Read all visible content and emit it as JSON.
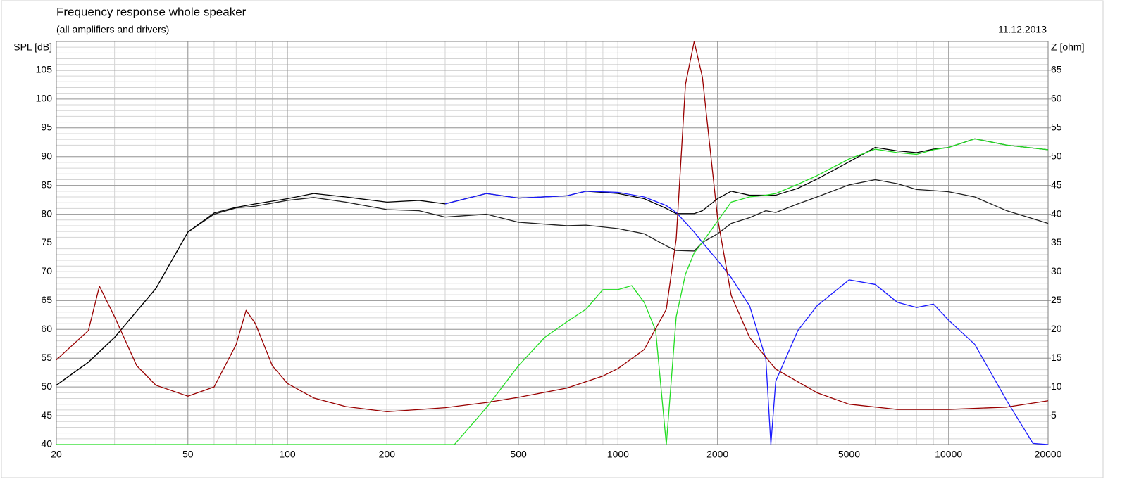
{
  "chart_data": {
    "type": "line",
    "title": "Frequency response whole speaker",
    "subtitle": "(all amplifiers and drivers)",
    "date": "11.12.2013",
    "ylabel": "SPL [dB]",
    "y2label": "Z [ohm]",
    "xscale": "log",
    "xlim": [
      20,
      20000
    ],
    "xticks": [
      20,
      50,
      100,
      200,
      500,
      1000,
      2000,
      5000,
      10000,
      20000
    ],
    "ylim": [
      40,
      110
    ],
    "yticks": [
      40,
      45,
      50,
      55,
      60,
      65,
      70,
      75,
      80,
      85,
      90,
      95,
      100,
      105
    ],
    "y2lim": [
      0,
      70
    ],
    "y2ticks": [
      5,
      10,
      15,
      20,
      25,
      30,
      35,
      40,
      45,
      50,
      55,
      60,
      65
    ],
    "grid": true,
    "minor_grid": true,
    "series": [
      {
        "color": "#202020",
        "x": [
          20,
          25,
          30,
          40,
          50,
          60,
          70,
          80,
          100,
          120,
          150,
          200,
          250,
          300,
          400,
          500,
          700,
          800,
          1000,
          1200,
          1400,
          1500,
          1700,
          1800,
          2000,
          2200,
          2500,
          2800,
          3000,
          3500,
          4000,
          5000,
          6000,
          7000,
          8000,
          9000,
          10000,
          12000,
          15000,
          20000
        ],
        "values": [
          50.3,
          54.3,
          58.6,
          67.1,
          76.9,
          80.0,
          81.1,
          81.4,
          82.4,
          82.9,
          82.1,
          80.8,
          80.6,
          79.5,
          80.0,
          78.6,
          78.0,
          78.1,
          77.5,
          76.6,
          74.5,
          73.7,
          73.6,
          75.1,
          76.6,
          78.4,
          79.4,
          80.6,
          80.3,
          81.8,
          83.0,
          85.1,
          86.0,
          85.3,
          84.3,
          84.1,
          83.9,
          83.0,
          80.6,
          78.4
        ]
      },
      {
        "color": "#000000",
        "x": [
          20,
          25,
          30,
          40,
          50,
          60,
          70,
          80,
          100,
          120,
          150,
          200,
          250,
          300,
          400,
          500,
          700,
          800,
          1000,
          1200,
          1400,
          1500,
          1700,
          1800,
          2000,
          2200,
          2500,
          3000,
          3500,
          4000,
          5000,
          6000,
          7000,
          8000,
          9000,
          10000,
          12000,
          15000,
          20000
        ],
        "values": [
          50.3,
          54.3,
          58.6,
          67.1,
          76.9,
          80.2,
          81.2,
          81.8,
          82.7,
          83.6,
          83.0,
          82.1,
          82.4,
          81.8,
          83.6,
          82.8,
          83.2,
          84.0,
          83.6,
          82.7,
          81.0,
          80.1,
          80.1,
          80.6,
          82.7,
          84.0,
          83.3,
          83.3,
          84.5,
          86.1,
          89.1,
          91.6,
          91.0,
          90.7,
          91.3,
          91.6,
          93.1,
          92.0,
          91.2
        ]
      },
      {
        "color": "#22dd22",
        "x": [
          20,
          320,
          400,
          500,
          600,
          700,
          800,
          900,
          1000,
          1100,
          1200,
          1300,
          1400,
          1500,
          1600,
          1700,
          1800,
          2000,
          2200,
          2500,
          2800,
          3000,
          3500,
          4000,
          5000,
          6000,
          7000,
          8000,
          9000,
          10000,
          12000,
          15000,
          20000
        ],
        "values": [
          40,
          40,
          46.4,
          53.7,
          58.6,
          61.3,
          63.5,
          66.9,
          66.9,
          67.6,
          64.7,
          59.8,
          40,
          62.2,
          69.6,
          73.3,
          75.1,
          78.8,
          82.1,
          83.0,
          83.3,
          83.6,
          85.2,
          86.7,
          89.6,
          91.3,
          90.7,
          90.4,
          91.2,
          91.6,
          93.1,
          92.0,
          91.2
        ]
      },
      {
        "color": "#1a1aff",
        "x": [
          300,
          400,
          500,
          700,
          800,
          1000,
          1200,
          1400,
          1500,
          1700,
          1800,
          2000,
          2200,
          2500,
          2800,
          2900,
          3000,
          3500,
          4000,
          5000,
          6000,
          7000,
          8000,
          9000,
          10000,
          12000,
          15000,
          18000,
          20000
        ],
        "values": [
          81.8,
          83.6,
          82.8,
          83.2,
          84.0,
          83.8,
          83.0,
          81.5,
          80.3,
          76.9,
          75.1,
          72.0,
          69.0,
          64.1,
          54.9,
          40,
          51.0,
          59.8,
          64.1,
          68.6,
          67.8,
          64.7,
          63.8,
          64.4,
          61.6,
          57.4,
          47.6,
          40.2,
          40
        ]
      },
      {
        "color": "#990000",
        "axis": "y2",
        "x": [
          20,
          25,
          27,
          30,
          35,
          40,
          50,
          60,
          70,
          75,
          80,
          90,
          100,
          120,
          150,
          200,
          300,
          400,
          500,
          700,
          900,
          1000,
          1200,
          1400,
          1500,
          1600,
          1700,
          1800,
          2000,
          2200,
          2500,
          3000,
          4000,
          5000,
          7000,
          10000,
          15000,
          20000
        ],
        "values": [
          14.7,
          19.8,
          27.5,
          22.2,
          13.7,
          10.3,
          8.4,
          10.0,
          17.4,
          23.3,
          21.0,
          13.7,
          10.6,
          8.1,
          6.6,
          5.7,
          6.4,
          7.3,
          8.2,
          9.8,
          11.9,
          13.2,
          16.5,
          23.5,
          35.7,
          62.6,
          70,
          63.8,
          39.4,
          25.9,
          18.6,
          13.1,
          9.0,
          7.0,
          6.1,
          6.1,
          6.5,
          7.6
        ]
      }
    ]
  }
}
